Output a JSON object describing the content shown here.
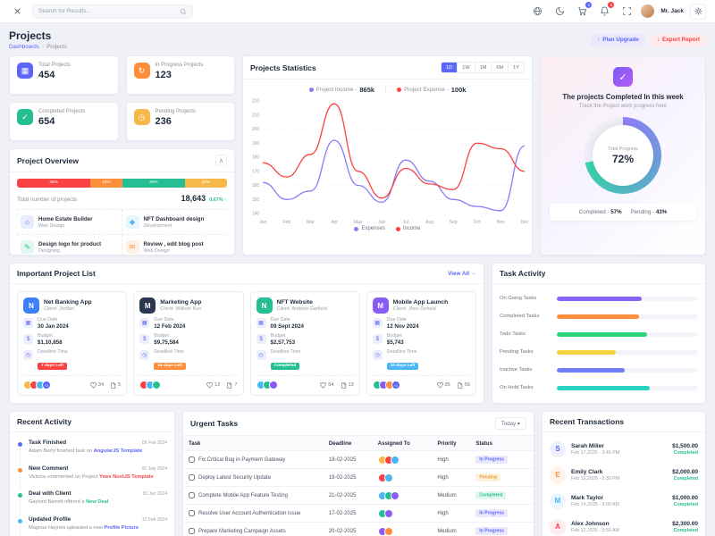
{
  "topbar": {
    "search_placeholder": "Search for Results...",
    "user_name": "Mr. Jack",
    "cart_badge": "1",
    "bell_badge": "5"
  },
  "page": {
    "title": "Projects",
    "breadcrumb_root": "Dashboards",
    "breadcrumb_current": "Projects",
    "plan_upgrade_label": "Plan Upgrade",
    "export_report_label": "Export Report"
  },
  "stats": [
    {
      "icon": "briefcase-icon",
      "label": "Total Projects",
      "value": "454",
      "color": "#5c67f7"
    },
    {
      "icon": "progress-icon",
      "label": "In Progress Projects",
      "value": "123",
      "color": "#ff8e3c"
    },
    {
      "icon": "check-icon",
      "label": "Completed Projects",
      "value": "654",
      "color": "#26bf94"
    },
    {
      "icon": "clock-icon",
      "label": "Pending Projects",
      "value": "236",
      "color": "#f5b849"
    }
  ],
  "project_overview": {
    "title": "Project Overview",
    "segments": [
      {
        "label": "35%",
        "pct": 35,
        "color": "#fb4242"
      },
      {
        "label": "15%",
        "pct": 15,
        "color": "#ff8e3c"
      },
      {
        "label": "30%",
        "pct": 30,
        "color": "#26bf94"
      },
      {
        "label": "20%",
        "pct": 20,
        "color": "#f5b849"
      }
    ],
    "total_label": "Total number of projects",
    "total_value": "18,643",
    "delta": "0.67% ↑",
    "items": [
      {
        "icon": "home-icon",
        "name": "Home Estate Builder",
        "category": "Web Design",
        "color": "#5c67f7"
      },
      {
        "icon": "nft-icon",
        "name": "NFT Dashboard design",
        "category": "Development",
        "color": "#49b6f5"
      },
      {
        "icon": "design-icon",
        "name": "Design logo for product",
        "category": "Designing",
        "color": "#26bf94"
      },
      {
        "icon": "blog-icon",
        "name": "Review , edit blog post",
        "category": "Web Design",
        "color": "#ff8e3c"
      }
    ]
  },
  "statistics": {
    "title": "Projects Statistics",
    "ranges": [
      "1D",
      "1W",
      "1M",
      "6M",
      "1Y"
    ],
    "active_range": "1D",
    "kpis": [
      {
        "label": "Project Income -",
        "value": "865k",
        "dot": "#8a7cf7"
      },
      {
        "label": "Project Expense -",
        "value": "100k",
        "dot": "#fb4242"
      }
    ],
    "chart_data": {
      "type": "line",
      "x": [
        "Jan",
        "Feb",
        "Mar",
        "Apr",
        "May",
        "Jun",
        "Jul",
        "Aug",
        "Sep",
        "Oct",
        "Nov",
        "Dec"
      ],
      "series": [
        {
          "name": "Expenses",
          "color": "#8a7cf7",
          "values": [
            162,
            150,
            156,
            192,
            160,
            148,
            178,
            163,
            150,
            145,
            142,
            188
          ]
        },
        {
          "name": "Income",
          "color": "#fb4242",
          "values": [
            176,
            166,
            182,
            218,
            170,
            151,
            172,
            161,
            157,
            190,
            186,
            170
          ]
        }
      ],
      "ylim": [
        140,
        220
      ],
      "yticks": [
        140,
        150,
        160,
        170,
        180,
        190,
        200,
        210,
        220
      ],
      "grid": true,
      "legend_position": "bottom"
    }
  },
  "completed_week": {
    "title": "The projects Completed In this week",
    "subtitle": "Track the Project work progress here",
    "progress_label": "Total Progress",
    "progress_pct": 72,
    "progress_value": "72%",
    "ring_colors": [
      "#8f7df8",
      "#35d3a8"
    ],
    "completed_label": "Completed -",
    "completed_value": "57%",
    "pending_label": "Pending -",
    "pending_value": "43%"
  },
  "important_projects": {
    "title": "Important Project List",
    "view_all": "View All",
    "view_all_arrow": "→",
    "due_label": "Due Date",
    "budget_label": "Budget",
    "deadline_label": "Deadline Time",
    "cards": [
      {
        "name": "Net Banking App",
        "client": "Client: Jordan",
        "avatar_color": "#3e80f9",
        "avatar_letter": "N",
        "due": "30 Jan 2024",
        "budget": "$1,10,858",
        "badge": "7 days Left",
        "badge_color": "#fb4242",
        "team": 3,
        "team_extra": "+2",
        "likes": "34",
        "files": "5"
      },
      {
        "name": "Marketing App",
        "client": "Client: Willium Kun",
        "avatar_color": "#2a3950",
        "avatar_letter": "M",
        "due": "12 Feb 2024",
        "budget": "$9,75,584",
        "badge": "15 days Left",
        "badge_color": "#ff8e3c",
        "team": 3,
        "team_extra": "",
        "likes": "12",
        "files": "7"
      },
      {
        "name": "NFT Website",
        "client": "Client: Andrew Garfield",
        "avatar_color": "#26bf94",
        "avatar_letter": "N",
        "due": "09 Sept 2024",
        "budget": "$2,57,753",
        "badge": "Completed",
        "badge_color": "#26bf94",
        "team": 3,
        "team_extra": "",
        "likes": "54",
        "files": "13"
      },
      {
        "name": "Mobile App Launch",
        "client": "Client: Jhon Donald",
        "avatar_color": "#8a5cf7",
        "avatar_letter": "M",
        "due": "12 Nov 2024",
        "budget": "$5,743",
        "badge": "10 days Left",
        "badge_color": "#49b6f5",
        "team": 3,
        "team_extra": "+1",
        "likes": "35",
        "files": "56"
      }
    ]
  },
  "task_activity": {
    "title": "Task Activity",
    "bars": [
      {
        "label": "On Going Tasks",
        "pct": 60,
        "color": "#8a63f7"
      },
      {
        "label": "Completed Tasks",
        "pct": 58,
        "color": "#ff8e3c"
      },
      {
        "label": "Todo Tasks",
        "pct": 64,
        "color": "#2bd67b"
      },
      {
        "label": "Pending Tasks",
        "pct": 42,
        "color": "#f5d23e"
      },
      {
        "label": "Inactive Tasks",
        "pct": 48,
        "color": "#6e7ef7"
      },
      {
        "label": "On Hold Tasks",
        "pct": 66,
        "color": "#2ad3c1"
      }
    ]
  },
  "recent_activity": {
    "title": "Recent Activity",
    "items": [
      {
        "dot": "#5c67f7",
        "title": "Task Finished",
        "date": "09 Feb 2024",
        "text": "Adam Berry finished task on ",
        "link": "AngularJS Template",
        "link_color": "#5c67f7"
      },
      {
        "dot": "#ff8e3c",
        "title": "New Comment",
        "date": "05 July 2024",
        "text": "Victoria commented on Project ",
        "link": "Ynex NuxtJS Template",
        "link_color": "#fb4242"
      },
      {
        "dot": "#26bf94",
        "title": "Deal with Client",
        "date": "30 Jan 2024",
        "text": "Gaylord Barrett offered a ",
        "link": "New Deal",
        "link_color": "#26bf94"
      },
      {
        "dot": "#49b6f5",
        "title": "Updated Profile",
        "date": "12 Feb 2024",
        "text": "Magnus Haynes uploaded a new ",
        "link": "Profile Picture",
        "link_color": "#5c67f7"
      }
    ]
  },
  "urgent_tasks": {
    "title": "Urgent Tasks",
    "filter": "Today ▾",
    "columns": [
      "Task",
      "Deadline",
      "Assigned To",
      "Priority",
      "Status"
    ],
    "rows": [
      {
        "task": "Fix Critical Bug in Payment Gateway",
        "deadline": "18-02-2025",
        "assignees": 3,
        "priority": "High",
        "status": "In Progress"
      },
      {
        "task": "Deploy Latest Security Update",
        "deadline": "19-02-2025",
        "assignees": 2,
        "priority": "High",
        "status": "Pending"
      },
      {
        "task": "Complete Mobile App Feature Testing",
        "deadline": "21-02-2025",
        "assignees": 3,
        "priority": "Medium",
        "status": "Completed"
      },
      {
        "task": "Resolve User Account Authentication Issue",
        "deadline": "17-02-2025",
        "assignees": 2,
        "priority": "High",
        "status": "In Progress"
      },
      {
        "task": "Prepare Marketing Campaign Assets",
        "deadline": "20-02-2025",
        "assignees": 2,
        "priority": "Medium",
        "status": "In Progress"
      }
    ]
  },
  "transactions": {
    "title": "Recent Transactions",
    "items": [
      {
        "initial": "S",
        "name": "Sarah Miller",
        "date": "Feb 17,2025 - 3:45 PM",
        "amount": "$1,500.00",
        "status": "Completed",
        "color": "#5c67f7"
      },
      {
        "initial": "E",
        "name": "Emily Clark",
        "date": "Feb 15,2025 - 2:30 PM",
        "amount": "$2,000.00",
        "status": "Completed",
        "color": "#ff8e3c"
      },
      {
        "initial": "M",
        "name": "Mark Taylor",
        "date": "Feb 14,2025 - 9:00 AM",
        "amount": "$1,000.00",
        "status": "Completed",
        "color": "#49b6f5"
      },
      {
        "initial": "A",
        "name": "Alex Johnson",
        "date": "Feb 12,2025 - 5:55 AM",
        "amount": "$2,300.00",
        "status": "Completed",
        "color": "#fb4242"
      }
    ]
  }
}
